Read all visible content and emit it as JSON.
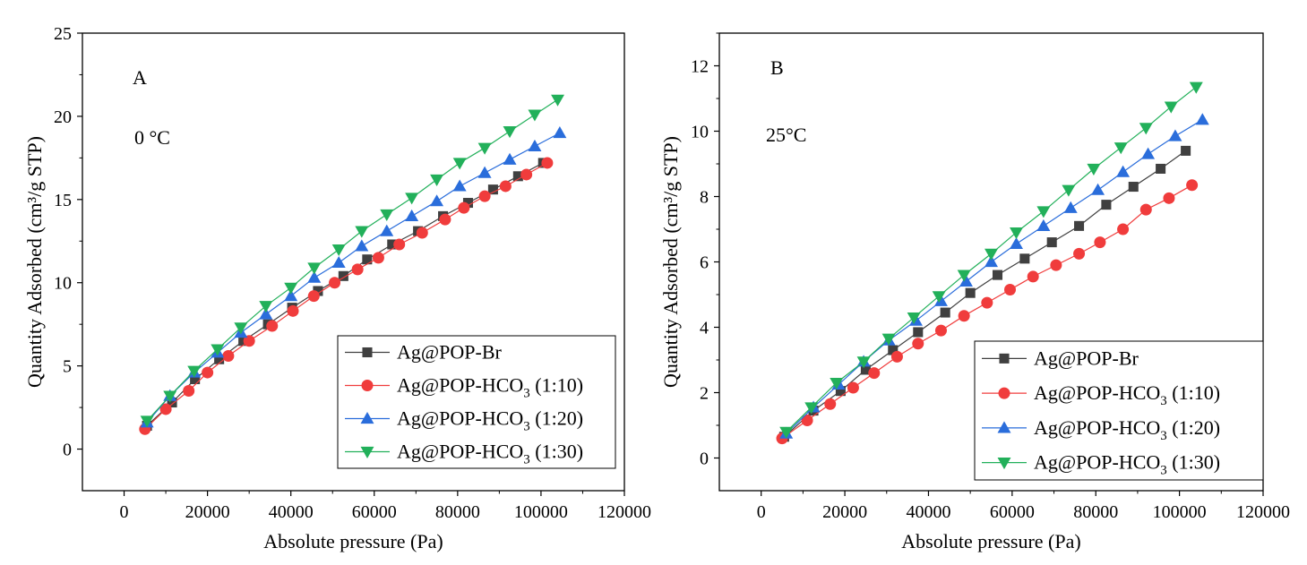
{
  "colors": {
    "Ag@POP-Br": "#404040",
    "Ag@POP-HCO3 (1:10)": "#f03c3c",
    "Ag@POP-HCO3 (1:20)": "#2a6ddb",
    "Ag@POP-HCO3 (1:30)": "#22b05a"
  },
  "markers": {
    "Ag@POP-Br": "square",
    "Ag@POP-HCO3 (1:10)": "circle",
    "Ag@POP-HCO3 (1:20)": "triangle-up",
    "Ag@POP-HCO3 (1:30)": "triangle-down"
  },
  "chart_data": [
    {
      "type": "line",
      "panel_label": "A",
      "annotation": "0 °C",
      "xlabel": "Absolute pressure (Pa)",
      "ylabel": "Quantity Adsorbed (cm³/g STP)",
      "xlim": [
        -10000,
        120000
      ],
      "ylim": [
        -2.5,
        25
      ],
      "xticks": [
        0,
        20000,
        40000,
        60000,
        80000,
        100000,
        120000
      ],
      "yticks": [
        0,
        5,
        10,
        15,
        20,
        25
      ],
      "legend_position": "bottom-right",
      "series": [
        {
          "name": "Ag@POP-Br",
          "points": [
            [
              5500,
              1.4
            ],
            [
              11500,
              2.8
            ],
            [
              17000,
              4.2
            ],
            [
              22800,
              5.4
            ],
            [
              28600,
              6.5
            ],
            [
              34500,
              7.5
            ],
            [
              40300,
              8.5
            ],
            [
              46500,
              9.5
            ],
            [
              52600,
              10.4
            ],
            [
              58300,
              11.4
            ],
            [
              64300,
              12.3
            ],
            [
              70500,
              13.1
            ],
            [
              76500,
              14.0
            ],
            [
              82500,
              14.8
            ],
            [
              88500,
              15.6
            ],
            [
              94500,
              16.4
            ],
            [
              100500,
              17.2
            ]
          ]
        },
        {
          "name": "Ag@POP-HCO3 (1:10)",
          "points": [
            [
              5000,
              1.2
            ],
            [
              10000,
              2.4
            ],
            [
              15500,
              3.5
            ],
            [
              20000,
              4.6
            ],
            [
              25000,
              5.6
            ],
            [
              30000,
              6.5
            ],
            [
              35500,
              7.4
            ],
            [
              40500,
              8.3
            ],
            [
              45500,
              9.2
            ],
            [
              50500,
              10.0
            ],
            [
              56000,
              10.8
            ],
            [
              61000,
              11.5
            ],
            [
              66000,
              12.3
            ],
            [
              71500,
              13.0
            ],
            [
              77000,
              13.8
            ],
            [
              81500,
              14.5
            ],
            [
              86500,
              15.2
            ],
            [
              91500,
              15.8
            ],
            [
              96500,
              16.5
            ],
            [
              101500,
              17.2
            ]
          ]
        },
        {
          "name": "Ag@POP-HCO3 (1:20)",
          "points": [
            [
              5500,
              1.6
            ],
            [
              11000,
              3.2
            ],
            [
              16800,
              4.6
            ],
            [
              22400,
              5.8
            ],
            [
              28000,
              7.0
            ],
            [
              34000,
              8.1
            ],
            [
              40000,
              9.2
            ],
            [
              45600,
              10.3
            ],
            [
              51500,
              11.2
            ],
            [
              57000,
              12.2
            ],
            [
              63000,
              13.1
            ],
            [
              69000,
              14.0
            ],
            [
              75000,
              14.9
            ],
            [
              80500,
              15.8
            ],
            [
              86500,
              16.6
            ],
            [
              92500,
              17.4
            ],
            [
              98500,
              18.2
            ],
            [
              104500,
              19.0
            ]
          ]
        },
        {
          "name": "Ag@POP-HCO3 (1:30)",
          "points": [
            [
              5500,
              1.7
            ],
            [
              11000,
              3.2
            ],
            [
              16800,
              4.7
            ],
            [
              22400,
              6.0
            ],
            [
              28000,
              7.3
            ],
            [
              34000,
              8.6
            ],
            [
              40000,
              9.7
            ],
            [
              45600,
              10.9
            ],
            [
              51500,
              12.0
            ],
            [
              57000,
              13.1
            ],
            [
              63000,
              14.1
            ],
            [
              69000,
              15.1
            ],
            [
              75000,
              16.2
            ],
            [
              80500,
              17.2
            ],
            [
              86500,
              18.1
            ],
            [
              92500,
              19.1
            ],
            [
              98500,
              20.1
            ],
            [
              104000,
              21.0
            ]
          ]
        }
      ]
    },
    {
      "type": "line",
      "panel_label": "B",
      "annotation": "25°C",
      "xlabel": "Absolute pressure (Pa)",
      "ylabel": "Quantity Adsorbed (cm³/g STP)",
      "xlim": [
        -10000,
        120000
      ],
      "ylim": [
        -1,
        13
      ],
      "xticks": [
        0,
        20000,
        40000,
        60000,
        80000,
        100000,
        120000
      ],
      "yticks": [
        0,
        2,
        4,
        6,
        8,
        10,
        12
      ],
      "legend_position": "bottom-right",
      "series": [
        {
          "name": "Ag@POP-Br",
          "points": [
            [
              5500,
              0.65
            ],
            [
              12500,
              1.45
            ],
            [
              19000,
              2.05
            ],
            [
              25000,
              2.7
            ],
            [
              31500,
              3.3
            ],
            [
              37500,
              3.85
            ],
            [
              44000,
              4.45
            ],
            [
              50000,
              5.05
            ],
            [
              56500,
              5.6
            ],
            [
              63000,
              6.1
            ],
            [
              69500,
              6.6
            ],
            [
              76000,
              7.1
            ],
            [
              82500,
              7.75
            ],
            [
              89000,
              8.3
            ],
            [
              95500,
              8.85
            ],
            [
              101500,
              9.4
            ]
          ]
        },
        {
          "name": "Ag@POP-HCO3 (1:10)",
          "points": [
            [
              5000,
              0.6
            ],
            [
              11000,
              1.15
            ],
            [
              16500,
              1.65
            ],
            [
              22000,
              2.15
            ],
            [
              27000,
              2.6
            ],
            [
              32500,
              3.1
            ],
            [
              37500,
              3.5
            ],
            [
              43000,
              3.9
            ],
            [
              48500,
              4.35
            ],
            [
              54000,
              4.75
            ],
            [
              59500,
              5.15
            ],
            [
              65000,
              5.55
            ],
            [
              70500,
              5.9
            ],
            [
              76000,
              6.25
            ],
            [
              81000,
              6.6
            ],
            [
              86500,
              7.0
            ],
            [
              92000,
              7.6
            ],
            [
              97500,
              7.95
            ],
            [
              103000,
              8.35
            ]
          ]
        },
        {
          "name": "Ag@POP-HCO3 (1:20)",
          "points": [
            [
              6000,
              0.75
            ],
            [
              12500,
              1.55
            ],
            [
              18500,
              2.25
            ],
            [
              24500,
              2.95
            ],
            [
              30500,
              3.6
            ],
            [
              37000,
              4.2
            ],
            [
              43000,
              4.8
            ],
            [
              49000,
              5.4
            ],
            [
              55000,
              6.0
            ],
            [
              61000,
              6.55
            ],
            [
              67500,
              7.1
            ],
            [
              74000,
              7.65
            ],
            [
              80500,
              8.2
            ],
            [
              86500,
              8.75
            ],
            [
              92500,
              9.3
            ],
            [
              99000,
              9.85
            ],
            [
              105500,
              10.35
            ]
          ]
        },
        {
          "name": "Ag@POP-HCO3 (1:30)",
          "points": [
            [
              6000,
              0.8
            ],
            [
              12000,
              1.55
            ],
            [
              18000,
              2.3
            ],
            [
              24500,
              2.95
            ],
            [
              30500,
              3.65
            ],
            [
              36500,
              4.3
            ],
            [
              42500,
              4.95
            ],
            [
              48500,
              5.6
            ],
            [
              55000,
              6.25
            ],
            [
              61000,
              6.9
            ],
            [
              67500,
              7.55
            ],
            [
              73500,
              8.2
            ],
            [
              79500,
              8.85
            ],
            [
              86000,
              9.5
            ],
            [
              92000,
              10.1
            ],
            [
              98000,
              10.75
            ],
            [
              104000,
              11.35
            ]
          ]
        }
      ]
    }
  ]
}
